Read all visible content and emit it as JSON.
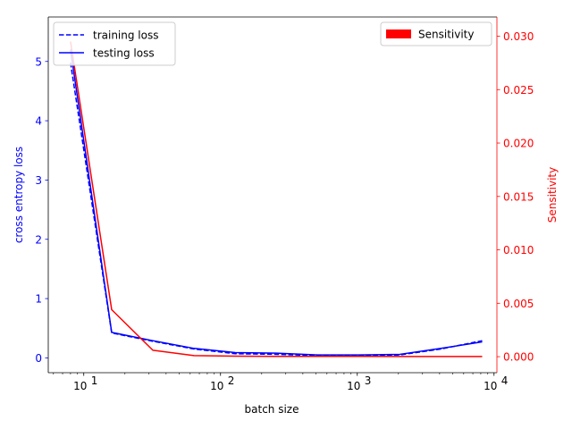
{
  "chart_data": {
    "type": "line",
    "xlabel": "batch size",
    "ylabel_left": "cross entropy loss",
    "ylabel_right": "Sensitivity",
    "xscale": "log",
    "xlim": [
      5.5,
      10500
    ],
    "ylim_left": [
      -0.25,
      5.75
    ],
    "ylim_right": [
      -0.0015,
      0.0318
    ],
    "x_ticks": [
      {
        "value": 10,
        "base": "10",
        "exp": "1"
      },
      {
        "value": 100,
        "base": "10",
        "exp": "2"
      },
      {
        "value": 1000,
        "base": "10",
        "exp": "3"
      },
      {
        "value": 10000,
        "base": "10",
        "exp": "4"
      }
    ],
    "y_ticks_left": [
      {
        "value": 0,
        "label": "0"
      },
      {
        "value": 1,
        "label": "1"
      },
      {
        "value": 2,
        "label": "2"
      },
      {
        "value": 3,
        "label": "3"
      },
      {
        "value": 4,
        "label": "4"
      },
      {
        "value": 5,
        "label": "5"
      }
    ],
    "y_ticks_right": [
      {
        "value": 0.0,
        "label": "0.000"
      },
      {
        "value": 0.005,
        "label": "0.005"
      },
      {
        "value": 0.01,
        "label": "0.010"
      },
      {
        "value": 0.015,
        "label": "0.015"
      },
      {
        "value": 0.02,
        "label": "0.020"
      },
      {
        "value": 0.025,
        "label": "0.025"
      },
      {
        "value": 0.03,
        "label": "0.030"
      }
    ],
    "x": [
      8,
      16,
      32,
      64,
      128,
      256,
      512,
      1024,
      2048,
      4096,
      8192
    ],
    "series": [
      {
        "name": "training loss",
        "axis": "left",
        "color": "#0000ff",
        "style": "dashed",
        "values": [
          4.98,
          0.42,
          0.28,
          0.15,
          0.07,
          0.06,
          0.04,
          0.04,
          0.05,
          0.15,
          0.29
        ]
      },
      {
        "name": "testing loss",
        "axis": "left",
        "color": "#0000ff",
        "style": "solid",
        "values": [
          5.2,
          0.43,
          0.29,
          0.16,
          0.09,
          0.08,
          0.05,
          0.05,
          0.06,
          0.16,
          0.27
        ]
      },
      {
        "name": "Sensitivity",
        "axis": "right",
        "color": "#ff0000",
        "style": "solid",
        "values": [
          0.0295,
          0.0044,
          0.0006,
          0.0001,
          5e-05,
          3e-05,
          3e-05,
          3e-05,
          2e-05,
          2e-05,
          2e-05
        ]
      }
    ],
    "legend_left": {
      "position": "top-left",
      "entries": [
        "training loss",
        "testing loss"
      ]
    },
    "legend_right": {
      "position": "top-right",
      "entries": [
        "Sensitivity"
      ]
    },
    "colors": {
      "left_axis": "#0000ff",
      "right_axis": "#ff0000",
      "frame": "#000000"
    }
  }
}
